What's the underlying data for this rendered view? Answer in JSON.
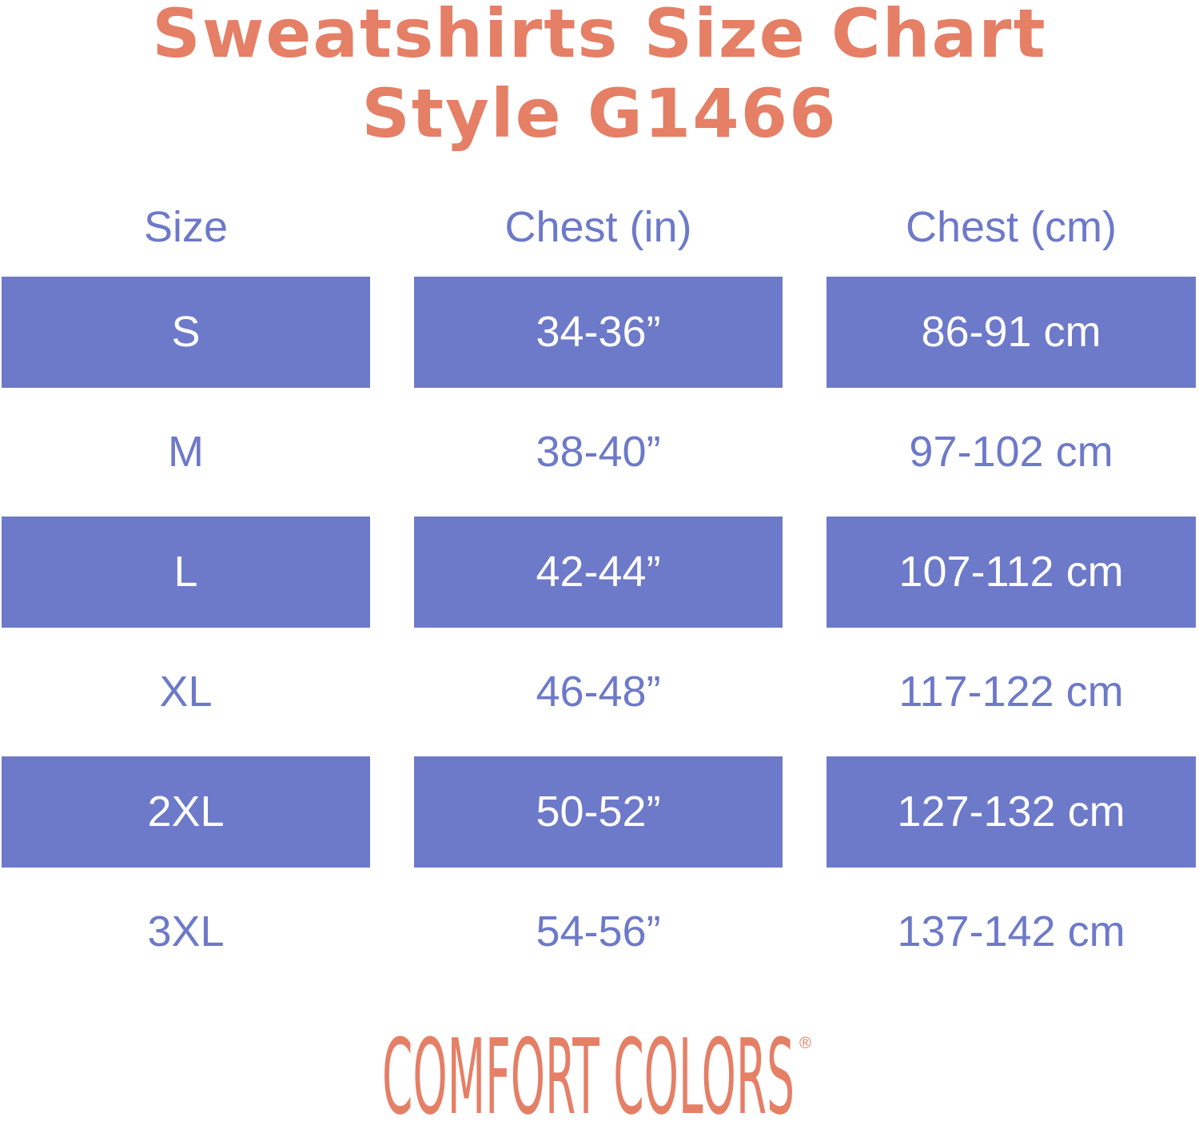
{
  "title": {
    "line1": "Sweatshirts Size Chart",
    "line2": "Style G1466"
  },
  "colors": {
    "accent": "#E57F66",
    "band": "#6D79C9",
    "text": "#6D79C9"
  },
  "table": {
    "headers": [
      "Size",
      "Chest (in)",
      "Chest (cm)"
    ],
    "rows": [
      [
        "S",
        "34-36”",
        "86-91 cm"
      ],
      [
        "M",
        "38-40”",
        "97-102 cm"
      ],
      [
        "L",
        "42-44”",
        "107-112 cm"
      ],
      [
        "XL",
        "46-48”",
        "117-122 cm"
      ],
      [
        "2XL",
        "50-52”",
        "127-132 cm"
      ],
      [
        "3XL",
        "54-56”",
        "137-142 cm"
      ]
    ]
  },
  "logo": {
    "text": "COMFORT COLORS",
    "mark": "®"
  }
}
